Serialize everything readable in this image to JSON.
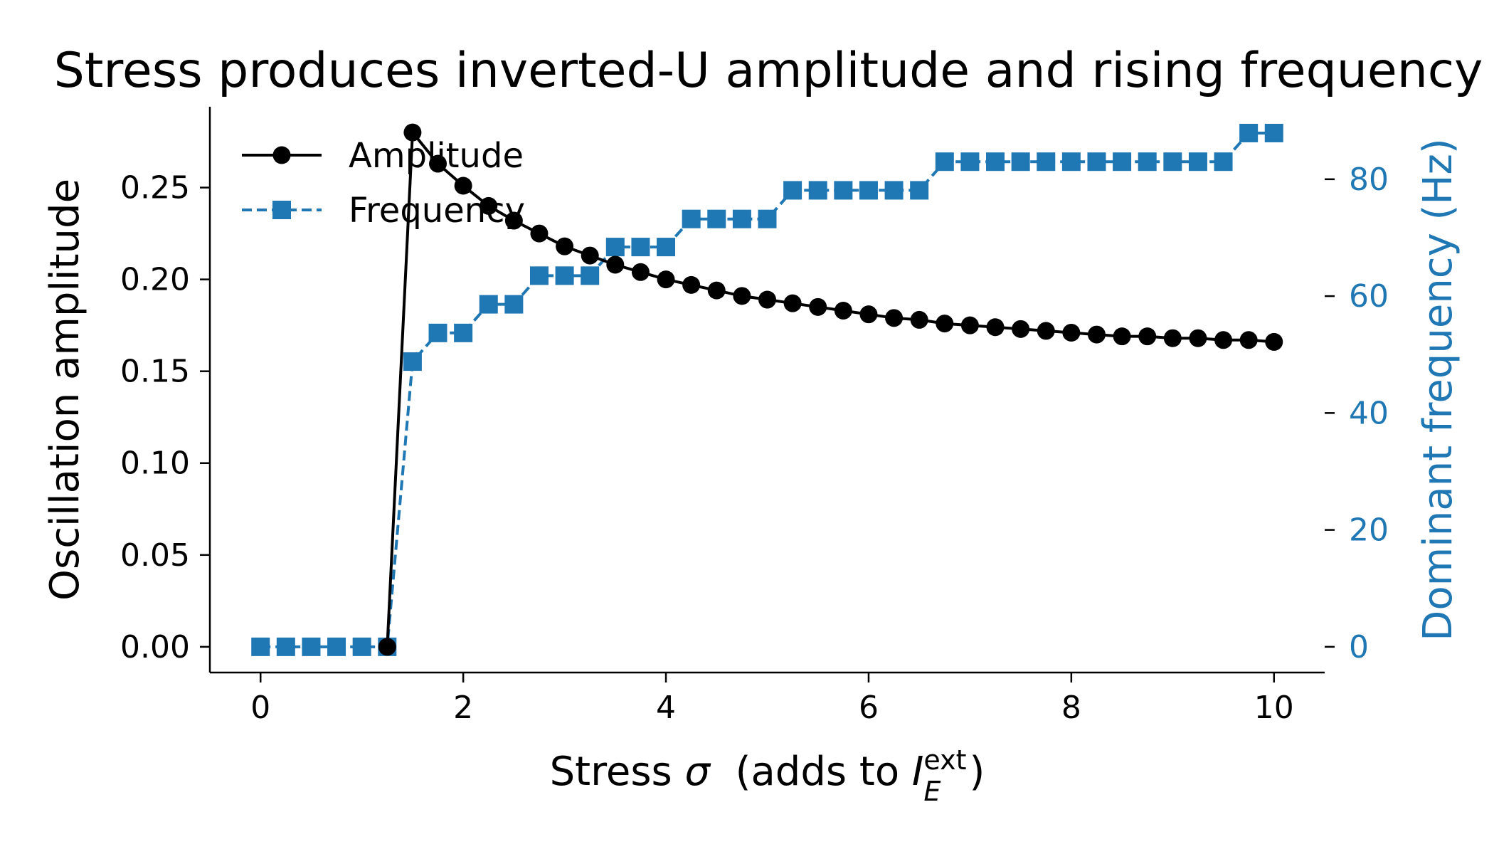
{
  "chart_data": {
    "type": "line",
    "title": "Stress produces inverted-U amplitude and rising frequency",
    "xlabel_parts": {
      "prefix": "Stress ",
      "symbol": "σ",
      "middle": "  (adds to ",
      "var": "I",
      "sub": "E",
      "sup": "ext",
      "suffix": ")"
    },
    "ylabel_left": "Oscillation amplitude",
    "ylabel_right": "Dominant frequency (Hz)",
    "xlim": [
      -0.5,
      10.5
    ],
    "ylim_left": [
      -0.014,
      0.294
    ],
    "ylim_right": [
      -4.4,
      92.4
    ],
    "x_ticks": [
      0,
      2,
      4,
      6,
      8,
      10
    ],
    "y_ticks_left": [
      "0.00",
      "0.05",
      "0.10",
      "0.15",
      "0.20",
      "0.25"
    ],
    "y_tick_values_left": [
      0,
      0.05,
      0.1,
      0.15,
      0.2,
      0.25
    ],
    "y_ticks_right": [
      0,
      20,
      40,
      60,
      80
    ],
    "legend_position": "upper-left",
    "grid": false,
    "x": [
      0,
      0.25,
      0.5,
      0.75,
      1.0,
      1.25,
      1.5,
      1.75,
      2.0,
      2.25,
      2.5,
      2.75,
      3.0,
      3.25,
      3.5,
      3.75,
      4.0,
      4.25,
      4.5,
      4.75,
      5.0,
      5.25,
      5.5,
      5.75,
      6.0,
      6.25,
      6.5,
      6.75,
      7.0,
      7.25,
      7.5,
      7.75,
      8.0,
      8.25,
      8.5,
      8.75,
      9.0,
      9.25,
      9.5,
      9.75,
      10.0
    ],
    "series": [
      {
        "name": "Amplitude",
        "axis": "left",
        "color": "#000000",
        "marker": "circle",
        "linestyle": "solid",
        "values": [
          null,
          null,
          null,
          null,
          null,
          0.0,
          0.28,
          0.263,
          0.251,
          0.24,
          0.232,
          0.225,
          0.218,
          0.213,
          0.208,
          0.204,
          0.2,
          0.197,
          0.194,
          0.191,
          0.189,
          0.187,
          0.185,
          0.183,
          0.181,
          0.179,
          0.178,
          0.176,
          0.175,
          0.174,
          0.173,
          0.172,
          0.171,
          0.17,
          0.169,
          0.169,
          0.168,
          0.168,
          0.167,
          0.167,
          0.166
        ]
      },
      {
        "name": "Frequency",
        "axis": "right",
        "color": "#1f77b4",
        "marker": "square",
        "linestyle": "dashed",
        "values": [
          0,
          0,
          0,
          0,
          0,
          0,
          48.8,
          53.7,
          53.7,
          58.6,
          58.6,
          63.5,
          63.5,
          63.5,
          68.4,
          68.4,
          68.4,
          73.2,
          73.2,
          73.2,
          73.2,
          78.1,
          78.1,
          78.1,
          78.1,
          78.1,
          78.1,
          83.0,
          83.0,
          83.0,
          83.0,
          83.0,
          83.0,
          83.0,
          83.0,
          83.0,
          83.0,
          83.0,
          83.0,
          87.9,
          87.9
        ]
      }
    ]
  }
}
